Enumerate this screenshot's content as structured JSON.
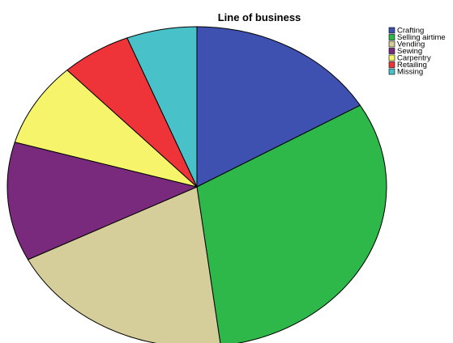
{
  "chart_data": {
    "type": "pie",
    "title": "Line of business",
    "legend_position": "top-right",
    "slices": [
      {
        "label": "Crafting",
        "value": 16.5,
        "color": "#3F51B0"
      },
      {
        "label": "Selling airtime",
        "value": 31.5,
        "color": "#2EB84A"
      },
      {
        "label": "Vending",
        "value": 19.5,
        "color": "#D5CE9A"
      },
      {
        "label": "Sewing",
        "value": 12.0,
        "color": "#7A2A7D"
      },
      {
        "label": "Carpentry",
        "value": 8.5,
        "color": "#F6F46A"
      },
      {
        "label": "Retailing",
        "value": 6.0,
        "color": "#EE3439"
      },
      {
        "label": "Missing",
        "value": 6.0,
        "color": "#48C1C8"
      }
    ]
  }
}
